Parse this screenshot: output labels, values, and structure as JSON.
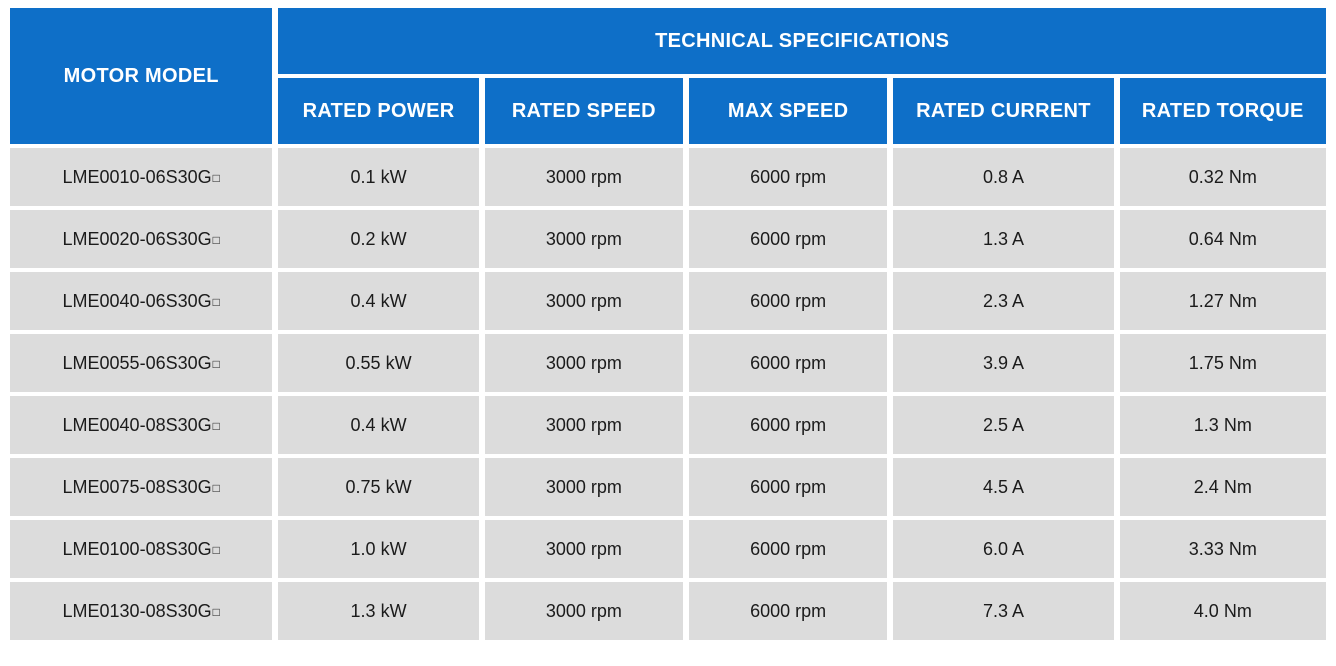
{
  "colors": {
    "header_blue": "#0E6FC8",
    "row_gray": "#DCDCDC",
    "header_text": "#FFFFFF",
    "body_text": "#1B1B1B",
    "page_background": "#FFFFFF"
  },
  "chart_data": {
    "type": "table",
    "title": "TECHNICAL SPECIFICATIONS",
    "row_header_label": "MOTOR MODEL",
    "columns": [
      "RATED POWER",
      "RATED SPEED",
      "MAX SPEED",
      "RATED CURRENT",
      "RATED TORQUE"
    ],
    "rows": [
      [
        "LME0010-06S30G□",
        "0.1 kW",
        "3000 rpm",
        "6000 rpm",
        "0.8 A",
        "0.32 Nm"
      ],
      [
        "LME0020-06S30G□",
        "0.2 kW",
        "3000 rpm",
        "6000 rpm",
        "1.3 A",
        "0.64 Nm"
      ],
      [
        "LME0040-06S30G□",
        "0.4 kW",
        "3000 rpm",
        "6000 rpm",
        "2.3 A",
        "1.27 Nm"
      ],
      [
        "LME0055-06S30G□",
        "0.55 kW",
        "3000 rpm",
        "6000 rpm",
        "3.9 A",
        "1.75 Nm"
      ],
      [
        "LME0040-08S30G□",
        "0.4 kW",
        "3000 rpm",
        "6000 rpm",
        "2.5 A",
        "1.3 Nm"
      ],
      [
        "LME0075-08S30G□",
        "0.75 kW",
        "3000 rpm",
        "6000 rpm",
        "4.5 A",
        "2.4 Nm"
      ],
      [
        "LME0100-08S30G□",
        "1.0 kW",
        "3000 rpm",
        "6000 rpm",
        "6.0 A",
        "3.33 Nm"
      ],
      [
        "LME0130-08S30G□",
        "1.3 kW",
        "3000 rpm",
        "6000 rpm",
        "7.3 A",
        "4.0 Nm"
      ]
    ]
  }
}
